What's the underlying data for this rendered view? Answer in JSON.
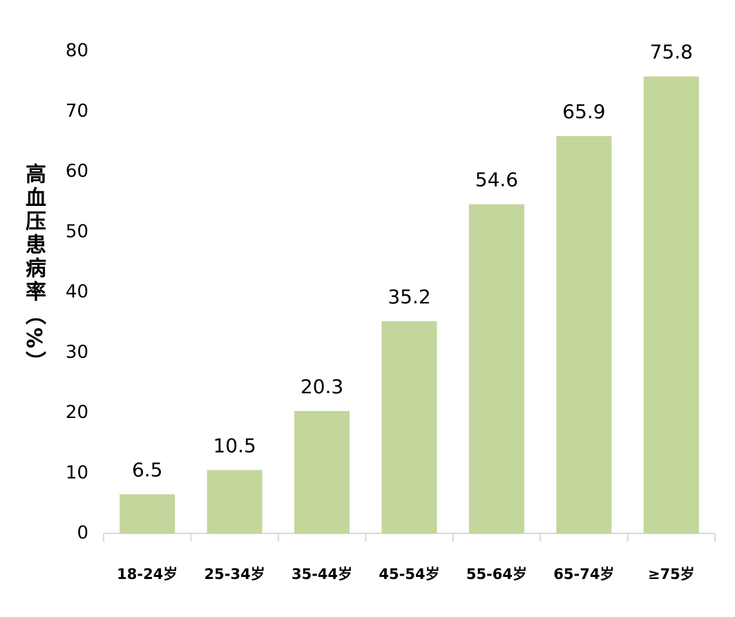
{
  "chart_data": {
    "type": "bar",
    "y_label": "高血压患病率（%）",
    "categories": [
      "18-24岁",
      "25-34岁",
      "35-44岁",
      "45-54岁",
      "55-64岁",
      "65-74岁",
      "≥75岁"
    ],
    "values": [
      6.5,
      10.5,
      20.3,
      35.2,
      54.6,
      65.9,
      75.8
    ],
    "color": "#c3d69b",
    "ylim": [
      0,
      80
    ],
    "yticks": [
      0,
      10,
      20,
      30,
      40,
      50,
      60,
      70,
      80
    ],
    "grid": false,
    "data_labels": true
  }
}
